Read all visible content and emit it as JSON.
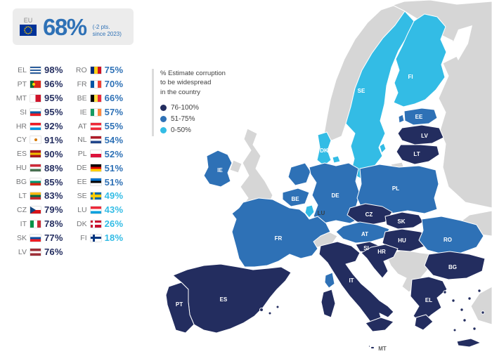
{
  "header": {
    "eu_label": "EU",
    "value": "68%",
    "note": "(-2 pts.\nsince 2023)"
  },
  "legend": {
    "title": "% Estimate corruption\nto be widespread\nin the country",
    "items": [
      {
        "label": "76-100%",
        "color": "#232d5f"
      },
      {
        "label": "51-75%",
        "color": "#2e71b6"
      },
      {
        "label": "0-50%",
        "color": "#33bce5"
      }
    ]
  },
  "chart_data": {
    "type": "heatmap",
    "title": "% Estimate corruption to be widespread in the country",
    "eu_average": {
      "value": 68,
      "change_note": "(-2 pts. since 2023)"
    },
    "legend_bins": [
      "76-100%",
      "51-75%",
      "0-50%"
    ],
    "categories": [
      "EL",
      "PT",
      "MT",
      "SI",
      "HR",
      "CY",
      "ES",
      "HU",
      "BG",
      "LT",
      "CZ",
      "IT",
      "SK",
      "LV",
      "RO",
      "FR",
      "BE",
      "IE",
      "AT",
      "NL",
      "PL",
      "DE",
      "EE",
      "SE",
      "LU",
      "DK",
      "FI"
    ],
    "values": [
      98,
      96,
      95,
      95,
      92,
      91,
      90,
      88,
      85,
      83,
      79,
      78,
      77,
      76,
      75,
      70,
      66,
      57,
      55,
      54,
      52,
      51,
      51,
      49,
      43,
      26,
      18
    ]
  },
  "ranking": {
    "columns": [
      [
        {
          "code": "EL",
          "value": "98%",
          "cat": "dark"
        },
        {
          "code": "PT",
          "value": "96%",
          "cat": "dark"
        },
        {
          "code": "MT",
          "value": "95%",
          "cat": "dark"
        },
        {
          "code": "SI",
          "value": "95%",
          "cat": "dark"
        },
        {
          "code": "HR",
          "value": "92%",
          "cat": "dark"
        },
        {
          "code": "CY",
          "value": "91%",
          "cat": "dark"
        },
        {
          "code": "ES",
          "value": "90%",
          "cat": "dark"
        },
        {
          "code": "HU",
          "value": "88%",
          "cat": "dark"
        },
        {
          "code": "BG",
          "value": "85%",
          "cat": "dark"
        },
        {
          "code": "LT",
          "value": "83%",
          "cat": "dark"
        },
        {
          "code": "CZ",
          "value": "79%",
          "cat": "dark"
        },
        {
          "code": "IT",
          "value": "78%",
          "cat": "dark"
        },
        {
          "code": "SK",
          "value": "77%",
          "cat": "dark"
        },
        {
          "code": "LV",
          "value": "76%",
          "cat": "dark"
        }
      ],
      [
        {
          "code": "RO",
          "value": "75%",
          "cat": "mid"
        },
        {
          "code": "FR",
          "value": "70%",
          "cat": "mid"
        },
        {
          "code": "BE",
          "value": "66%",
          "cat": "mid"
        },
        {
          "code": "IE",
          "value": "57%",
          "cat": "mid"
        },
        {
          "code": "AT",
          "value": "55%",
          "cat": "mid"
        },
        {
          "code": "NL",
          "value": "54%",
          "cat": "mid"
        },
        {
          "code": "PL",
          "value": "52%",
          "cat": "mid"
        },
        {
          "code": "DE",
          "value": "51%",
          "cat": "mid"
        },
        {
          "code": "EE",
          "value": "51%",
          "cat": "mid"
        },
        {
          "code": "SE",
          "value": "49%",
          "cat": "light"
        },
        {
          "code": "LU",
          "value": "43%",
          "cat": "light"
        },
        {
          "code": "DK",
          "value": "26%",
          "cat": "light"
        },
        {
          "code": "FI",
          "value": "18%",
          "cat": "light"
        }
      ]
    ]
  },
  "flags": {
    "EL": {
      "t": "h",
      "c": [
        "#2d5f9e",
        "#ffffff",
        "#2d5f9e",
        "#ffffff",
        "#2d5f9e"
      ]
    },
    "PT": {
      "t": "v",
      "c": [
        "#046a38",
        "#da291c",
        "#da291c"
      ],
      "dot": {
        "color": "#ffdf00",
        "x": "33%"
      }
    },
    "MT": {
      "t": "v",
      "c": [
        "#ffffff",
        "#cf142b"
      ]
    },
    "SI": {
      "t": "h",
      "c": [
        "#ffffff",
        "#005da4",
        "#ed1c24"
      ]
    },
    "HR": {
      "t": "h",
      "c": [
        "#ed1c24",
        "#ffffff",
        "#0093dd"
      ]
    },
    "CY": {
      "t": "v",
      "c": [
        "#ffffff",
        "#ffffff"
      ],
      "dot": {
        "color": "#d57800",
        "x": "50%"
      }
    },
    "ES": {
      "t": "h",
      "c": [
        "#aa151b",
        "#f1bf00",
        "#aa151b"
      ]
    },
    "HU": {
      "t": "h",
      "c": [
        "#ce2939",
        "#ffffff",
        "#477050"
      ]
    },
    "BG": {
      "t": "h",
      "c": [
        "#ffffff",
        "#00966e",
        "#d62612"
      ]
    },
    "LT": {
      "t": "h",
      "c": [
        "#fdb913",
        "#006a44",
        "#c1272d"
      ]
    },
    "CZ": {
      "t": "h",
      "c": [
        "#ffffff",
        "#d7141a"
      ],
      "tri": "#11457e"
    },
    "IT": {
      "t": "v",
      "c": [
        "#009246",
        "#ffffff",
        "#ce2b37"
      ]
    },
    "SK": {
      "t": "h",
      "c": [
        "#ffffff",
        "#0b4ea2",
        "#ee1c25"
      ]
    },
    "LV": {
      "t": "h",
      "c": [
        "#9e3039",
        "#ffffff",
        "#9e3039"
      ]
    },
    "RO": {
      "t": "v",
      "c": [
        "#002b7f",
        "#fcd116",
        "#ce1126"
      ]
    },
    "FR": {
      "t": "v",
      "c": [
        "#0055a4",
        "#ffffff",
        "#ef4135"
      ]
    },
    "BE": {
      "t": "v",
      "c": [
        "#000000",
        "#fae042",
        "#ed2939"
      ]
    },
    "IE": {
      "t": "v",
      "c": [
        "#169b62",
        "#ffffff",
        "#ff883e"
      ]
    },
    "AT": {
      "t": "h",
      "c": [
        "#ed2939",
        "#ffffff",
        "#ed2939"
      ]
    },
    "NL": {
      "t": "h",
      "c": [
        "#ae1c28",
        "#ffffff",
        "#21468b"
      ]
    },
    "PL": {
      "t": "h",
      "c": [
        "#ffffff",
        "#dc143c"
      ]
    },
    "DE": {
      "t": "h",
      "c": [
        "#000000",
        "#dd0000",
        "#ffce00"
      ]
    },
    "EE": {
      "t": "h",
      "c": [
        "#0072ce",
        "#000000",
        "#ffffff"
      ]
    },
    "SE": {
      "t": "cross",
      "bg": "#006aa7",
      "cr": "#fecc02"
    },
    "LU": {
      "t": "h",
      "c": [
        "#ed2939",
        "#ffffff",
        "#00a1de"
      ]
    },
    "DK": {
      "t": "cross",
      "bg": "#c8102e",
      "cr": "#ffffff"
    },
    "FI": {
      "t": "cross",
      "bg": "#ffffff",
      "cr": "#003580"
    }
  },
  "map": {
    "colors": {
      "dark": "#232d5f",
      "mid": "#2e71b6",
      "light": "#33bce5",
      "noneu": "#d6d6d6"
    },
    "label_colors": {
      "default": "#ffffff",
      "LU": "#333f48",
      "MT": "#5f5f5f"
    },
    "countries": {
      "SE": {
        "label": "SE",
        "cat": "light"
      },
      "FI": {
        "label": "FI",
        "cat": "light"
      },
      "DK": {
        "label": "DK",
        "cat": "light"
      },
      "LU": {
        "label": "LU",
        "cat": "light"
      },
      "EE": {
        "label": "EE",
        "cat": "mid"
      },
      "IE": {
        "label": "IE",
        "cat": "mid"
      },
      "NL": {
        "cat": "mid"
      },
      "BE": {
        "label": "BE",
        "cat": "mid"
      },
      "DE": {
        "label": "DE",
        "cat": "mid"
      },
      "PL": {
        "label": "PL",
        "cat": "mid"
      },
      "AT": {
        "label": "AT",
        "cat": "mid"
      },
      "FR": {
        "label": "FR",
        "cat": "mid"
      },
      "RO": {
        "label": "RO",
        "cat": "mid"
      },
      "LV": {
        "label": "LV",
        "cat": "dark"
      },
      "LT": {
        "label": "LT",
        "cat": "dark"
      },
      "CZ": {
        "label": "CZ",
        "cat": "dark"
      },
      "SK": {
        "label": "SK",
        "cat": "dark"
      },
      "HU": {
        "label": "HU",
        "cat": "dark"
      },
      "SI": {
        "label": "SI",
        "cat": "dark"
      },
      "HR": {
        "label": "HR",
        "cat": "dark"
      },
      "IT": {
        "label": "IT",
        "cat": "dark"
      },
      "ES": {
        "label": "ES",
        "cat": "dark"
      },
      "PT": {
        "label": "PT",
        "cat": "dark"
      },
      "BG": {
        "label": "BG",
        "cat": "dark"
      },
      "EL": {
        "label": "EL",
        "cat": "dark"
      },
      "MT": {
        "label": "MT",
        "cat": "dark"
      },
      "NO": {
        "cat": "noneu"
      },
      "RU": {
        "cat": "noneu"
      },
      "UA": {
        "cat": "noneu"
      },
      "KGD": {
        "cat": "noneu"
      },
      "UK": {
        "cat": "noneu"
      },
      "NIE": {
        "cat": "noneu"
      },
      "CH": {
        "cat": "noneu"
      },
      "BALK": {
        "cat": "noneu"
      },
      "TR": {
        "cat": "noneu"
      }
    }
  }
}
